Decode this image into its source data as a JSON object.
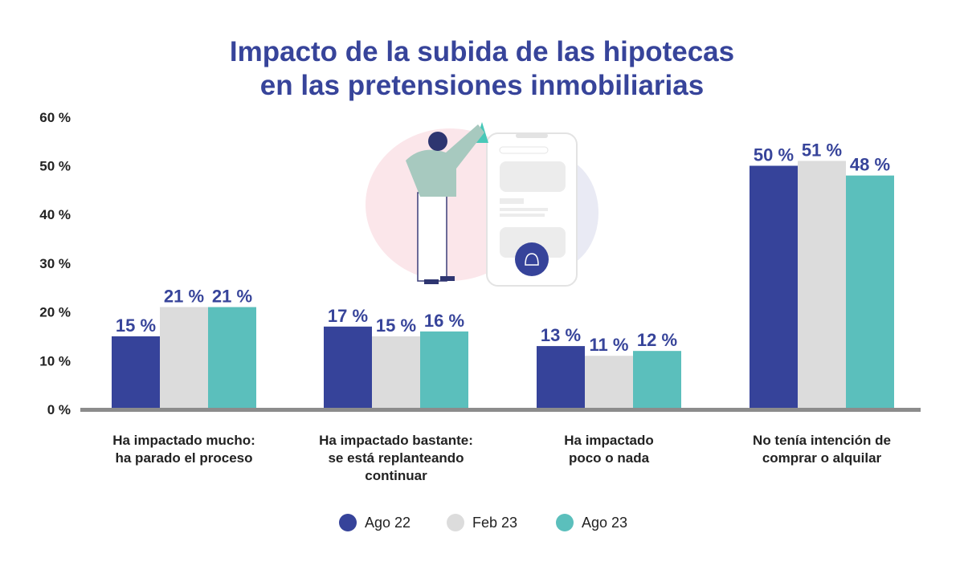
{
  "chart_data": {
    "type": "bar",
    "title": "Impacto de la subida de las hipotecas en las pretensiones inmobiliarias",
    "title_lines": [
      "Impacto de la subida de las hipotecas",
      "en las pretensiones inmobiliarias"
    ],
    "categories": [
      [
        "Ha impactado mucho:",
        "ha parado el proceso"
      ],
      [
        "Ha impactado bastante:",
        "se está replanteando",
        "continuar"
      ],
      [
        "Ha impactado",
        "poco o nada"
      ],
      [
        "No tenía intención de",
        "comprar o alquilar"
      ]
    ],
    "series": [
      {
        "name": "Ago 22",
        "color": "#36439a",
        "values": [
          15,
          17,
          13,
          50
        ]
      },
      {
        "name": "Feb 23",
        "color": "#dcdcdc",
        "values": [
          21,
          15,
          11,
          51
        ]
      },
      {
        "name": "Ago 23",
        "color": "#5bbfbc",
        "values": [
          21,
          16,
          12,
          48
        ]
      }
    ],
    "ylim": [
      0,
      60
    ],
    "yticks": [
      "0 %",
      "10 %",
      "20 %",
      "30 %",
      "40 %",
      "50 %",
      "60 %"
    ],
    "grid": false,
    "legend": "bottom",
    "value_suffix": " %"
  }
}
